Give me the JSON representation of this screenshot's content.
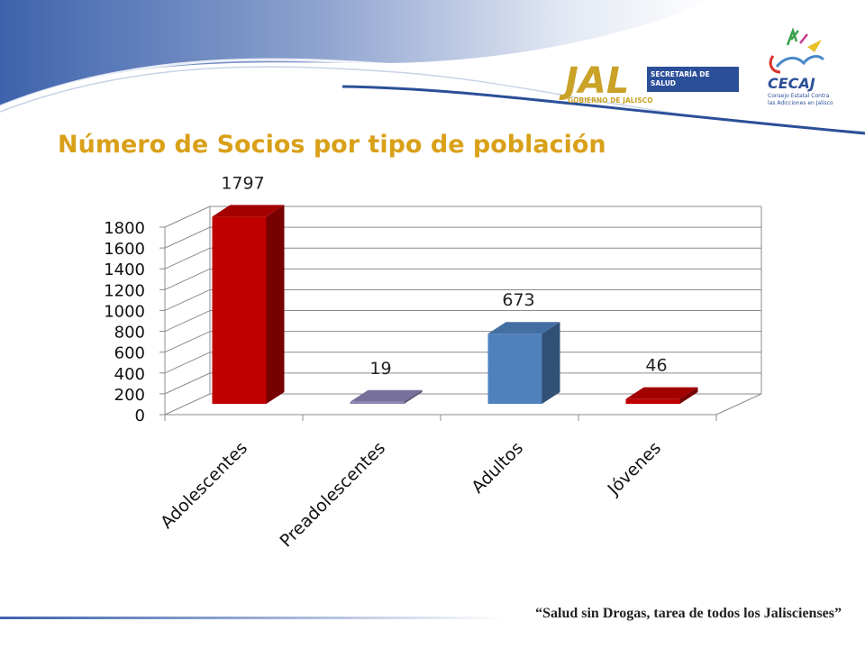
{
  "slide": {
    "title": "Número de Socios por tipo de población",
    "footer": "“Salud sin Drogas, tarea de todos los Jaliscienses”"
  },
  "logos": {
    "jal": {
      "word": "JAL",
      "sub": "GOBIERNO DE JALISCO",
      "dept_line1": "SECRETARÍA DE",
      "dept_line2": "SALUD"
    },
    "cecaj": {
      "word": "CECAJ",
      "line1": "Consejo Estatal Contra",
      "line2": "las Adicciones en Jalisco"
    }
  },
  "colors": {
    "title": "#d9a019",
    "header_blue": "#3e63ac",
    "jal_gold": "#c9a227",
    "bar_red": "#c00000",
    "bar_lilac": "#8c84b5",
    "bar_blue": "#4f81bd"
  },
  "chart_data": {
    "type": "bar",
    "style": "3d-column",
    "title": "Número de Socios por tipo de población",
    "categories": [
      "Adolescentes",
      "Preadolescentes",
      "Adultos",
      "Jóvenes"
    ],
    "values": [
      1797,
      19,
      673,
      46
    ],
    "bar_colors": [
      "#c00000",
      "#8c84b5",
      "#4f81bd",
      "#c00000"
    ],
    "ylim": [
      0,
      1800
    ],
    "yticks": [
      0,
      200,
      400,
      600,
      800,
      1000,
      1200,
      1400,
      1600,
      1800
    ],
    "grid": true,
    "legend": "none",
    "data_labels": [
      "1797",
      "19",
      "673",
      "46"
    ]
  }
}
